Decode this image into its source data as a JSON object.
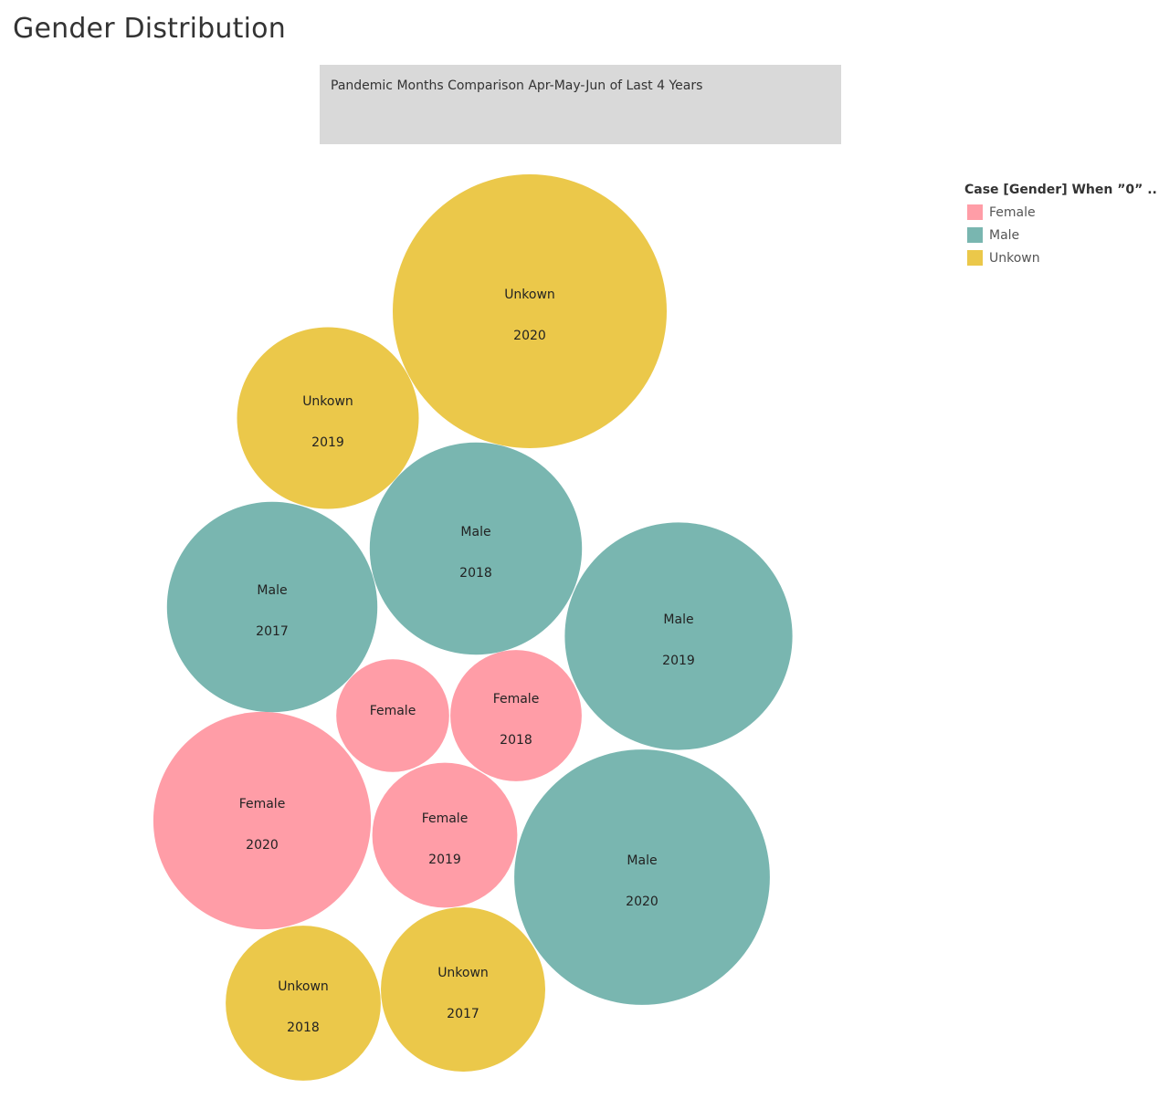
{
  "title": "Gender Distribution",
  "subtitle": "Pandemic Months Comparison Apr-May-Jun of Last 4 Years",
  "legend": {
    "title": "Case [Gender] When ”0” ..",
    "items": [
      {
        "label": "Female",
        "color": "#ff9da7"
      },
      {
        "label": "Male",
        "color": "#79b6b0"
      },
      {
        "label": "Unkown",
        "color": "#ebc84a"
      }
    ]
  },
  "chart_data": {
    "type": "bubble",
    "size_encoding": "relative count",
    "colors": {
      "Female": "#ff9da7",
      "Male": "#79b6b0",
      "Unkown": "#ebc84a"
    },
    "bubbles": [
      {
        "category": "Unkown",
        "year": "2020",
        "relative_size": 1.0
      },
      {
        "category": "Unkown",
        "year": "2019",
        "relative_size": 0.44
      },
      {
        "category": "Male",
        "year": "2018",
        "relative_size": 0.6
      },
      {
        "category": "Male",
        "year": "2017",
        "relative_size": 0.59
      },
      {
        "category": "Male",
        "year": "2019",
        "relative_size": 0.69
      },
      {
        "category": "Female",
        "year": "",
        "relative_size": 0.17
      },
      {
        "category": "Female",
        "year": "2018",
        "relative_size": 0.23
      },
      {
        "category": "Female",
        "year": "2020",
        "relative_size": 0.63
      },
      {
        "category": "Female",
        "year": "2019",
        "relative_size": 0.28
      },
      {
        "category": "Male",
        "year": "2020",
        "relative_size": 0.87
      },
      {
        "category": "Unkown",
        "year": "2018",
        "relative_size": 0.32
      },
      {
        "category": "Unkown",
        "year": "2017",
        "relative_size": 0.36
      }
    ]
  }
}
